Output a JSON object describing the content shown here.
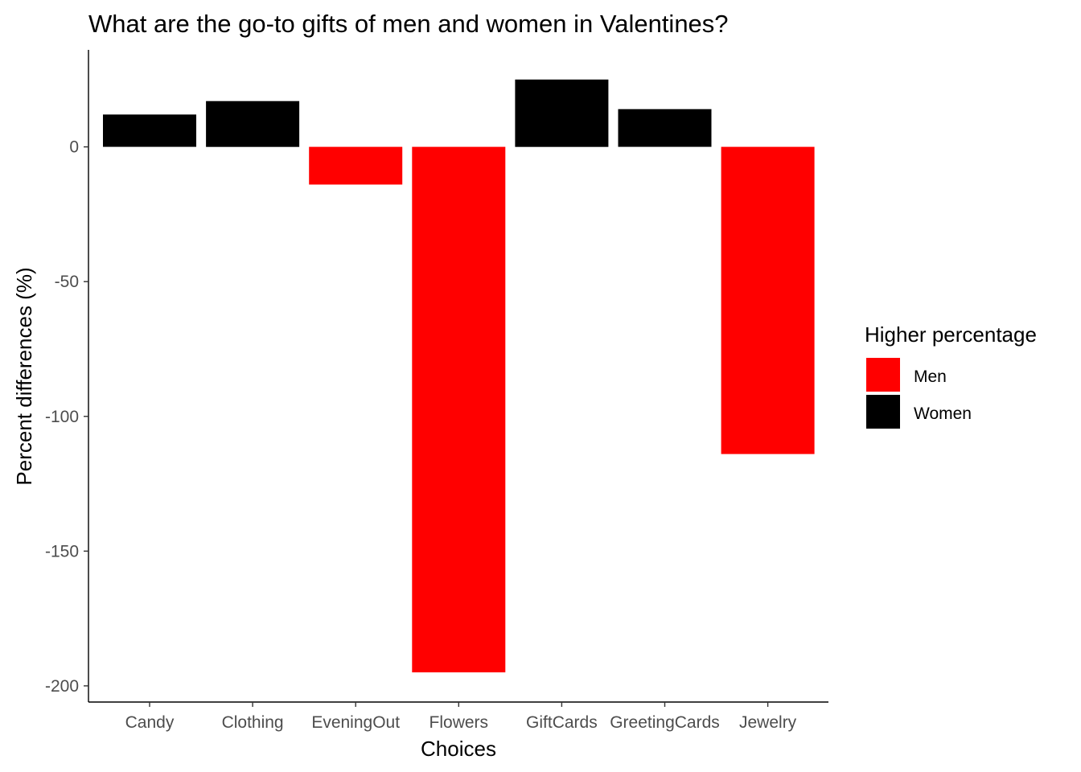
{
  "chart_data": {
    "type": "bar",
    "title": "What are the go-to gifts of men and women in Valentines?",
    "xlabel": "Choices",
    "ylabel": "Percent differences (%)",
    "categories": [
      "Candy",
      "Clothing",
      "EveningOut",
      "Flowers",
      "GiftCards",
      "GreetingCards",
      "Jewelry"
    ],
    "values": [
      12,
      17,
      -14,
      -195,
      25,
      14,
      -114
    ],
    "groups": [
      "Women",
      "Women",
      "Men",
      "Men",
      "Women",
      "Women",
      "Men"
    ],
    "ylim": [
      -206,
      36
    ],
    "yticks": [
      0,
      -50,
      -100,
      -150,
      -200
    ],
    "ytick_labels": [
      "0",
      "-50",
      "-100",
      "-150",
      "-200"
    ],
    "grid": false,
    "legend": {
      "title": "Higher percentage",
      "position": "right",
      "entries": [
        {
          "label": "Men",
          "color": "#ff0000"
        },
        {
          "label": "Women",
          "color": "#000000"
        }
      ]
    },
    "colors": {
      "Men": "#ff0000",
      "Women": "#000000"
    }
  }
}
